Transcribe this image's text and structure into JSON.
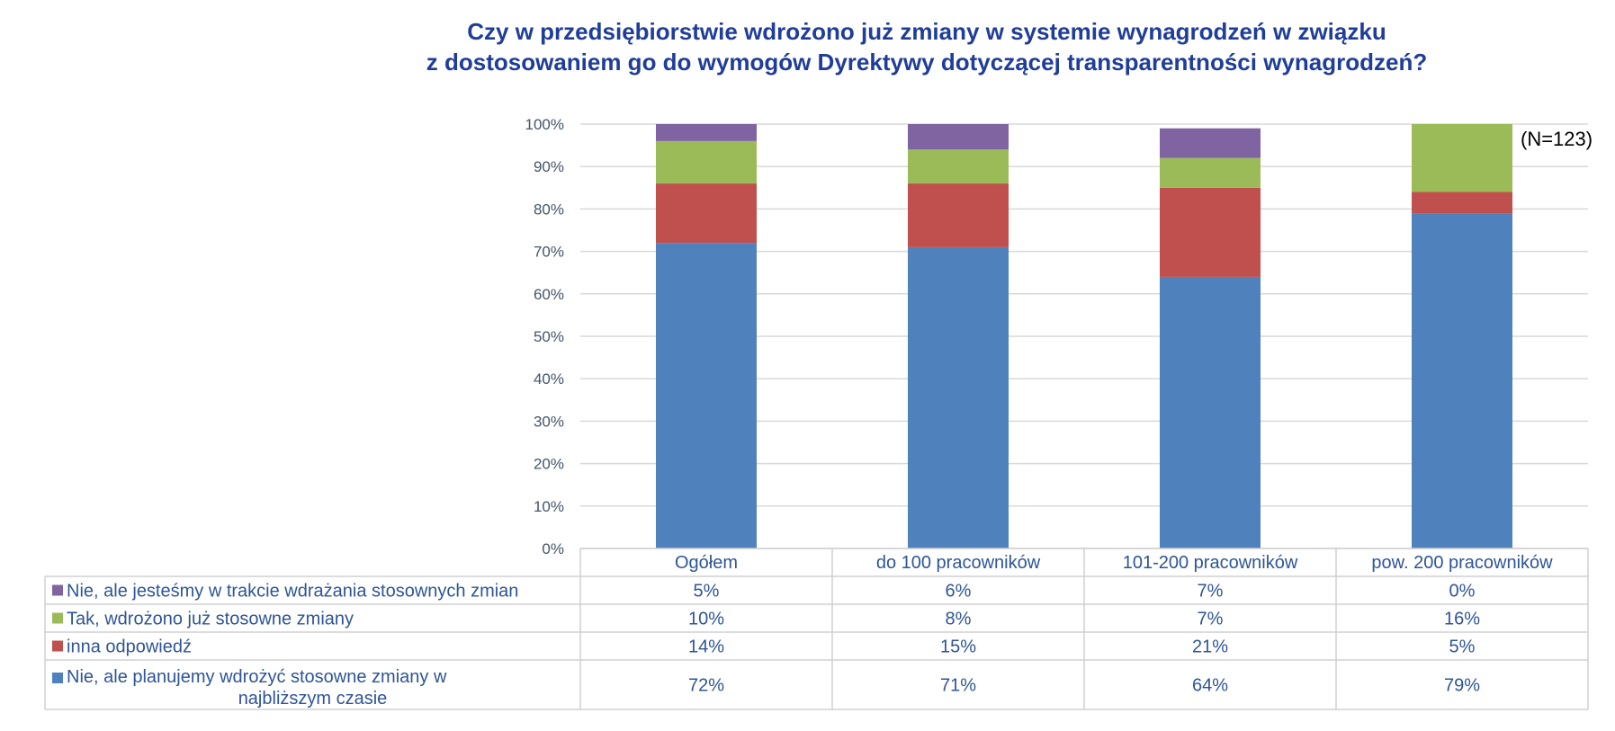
{
  "title_line1": "Czy w przedsiębiorstwie wdrożono już zmiany w systemie wynagrodzeń w związku",
  "title_line2": "z dostosowaniem go do wymogów Dyrektywy dotyczącej transparentności wynagrodzeń?",
  "note": "(N=123)",
  "chart_data": {
    "type": "bar",
    "stacked": true,
    "categories": [
      "Ogółem",
      "do 100 pracowników",
      "101-200 pracowników",
      "pow. 200 pracowników"
    ],
    "series": [
      {
        "name": "Nie, ale planujemy wdrożyć stosowne zmiany w najbliższym czasie",
        "color": "#4f81bd",
        "values": [
          72,
          71,
          64,
          79
        ],
        "labels": [
          "72%",
          "71%",
          "64%",
          "79%"
        ]
      },
      {
        "name": "inna odpowiedź",
        "color": "#c0504d",
        "values": [
          14,
          15,
          21,
          5
        ],
        "labels": [
          "14%",
          "15%",
          "21%",
          "5%"
        ]
      },
      {
        "name": "Tak, wdrożono już stosowne zmiany",
        "color": "#9bbb59",
        "values": [
          10,
          8,
          7,
          16
        ],
        "labels": [
          "10%",
          "8%",
          "7%",
          "16%"
        ]
      },
      {
        "name": "Nie, ale jesteśmy w trakcie wdrażania stosownych zmian",
        "color": "#8064a2",
        "values": [
          5,
          6,
          7,
          0
        ],
        "labels": [
          "5%",
          "6%",
          "7%",
          "0%"
        ]
      }
    ],
    "table_series_order": [
      3,
      2,
      1,
      0
    ],
    "ylim": [
      0,
      100
    ],
    "yticks": [
      "0%",
      "10%",
      "20%",
      "30%",
      "40%",
      "50%",
      "60%",
      "70%",
      "80%",
      "90%",
      "100%"
    ],
    "grid": true,
    "legend": "data-table"
  }
}
